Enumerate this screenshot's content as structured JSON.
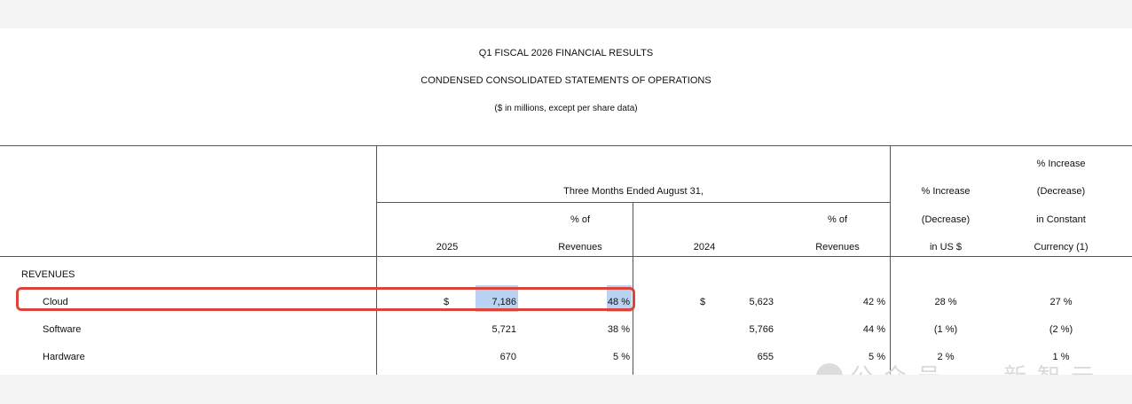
{
  "report": {
    "title": "Q1 FISCAL 2026 FINANCIAL RESULTS",
    "subtitle": "CONDENSED CONSOLIDATED STATEMENTS OF OPERATIONS",
    "units_note": "($ in millions, except per share data)"
  },
  "table": {
    "period_header": "Three Months Ended August 31,",
    "col_pct_of_1": "% of",
    "col_pct_of_2": "Revenues",
    "year_2025": "2025",
    "year_2024": "2024",
    "inc_usd_1": "% Increase",
    "inc_usd_2": "(Decrease)",
    "inc_usd_3": "in US $",
    "inc_cc_1": "% Increase",
    "inc_cc_2": "(Decrease)",
    "inc_cc_3": "in Constant",
    "inc_cc_4": "Currency (1)",
    "section_label": "REVENUES",
    "rows": [
      {
        "label": "Cloud",
        "cur_2025": "$",
        "val_2025": "7,186",
        "pct_2025": "48 %",
        "cur_2024": "$",
        "val_2024": "5,623",
        "pct_2024": "42 %",
        "inc_usd": "28 %",
        "inc_cc": "27 %"
      },
      {
        "label": "Software",
        "cur_2025": "",
        "val_2025": "5,721",
        "pct_2025": "38 %",
        "cur_2024": "",
        "val_2024": "5,766",
        "pct_2024": "44 %",
        "inc_usd": "(1 %)",
        "inc_cc": "(2 %)"
      },
      {
        "label": "Hardware",
        "cur_2025": "",
        "val_2025": "670",
        "pct_2025": "5 %",
        "cur_2024": "",
        "val_2024": "655",
        "pct_2024": "5 %",
        "inc_usd": "2 %",
        "inc_cc": "1 %"
      }
    ]
  },
  "watermark": {
    "text": "公众号 · 新智元"
  }
}
